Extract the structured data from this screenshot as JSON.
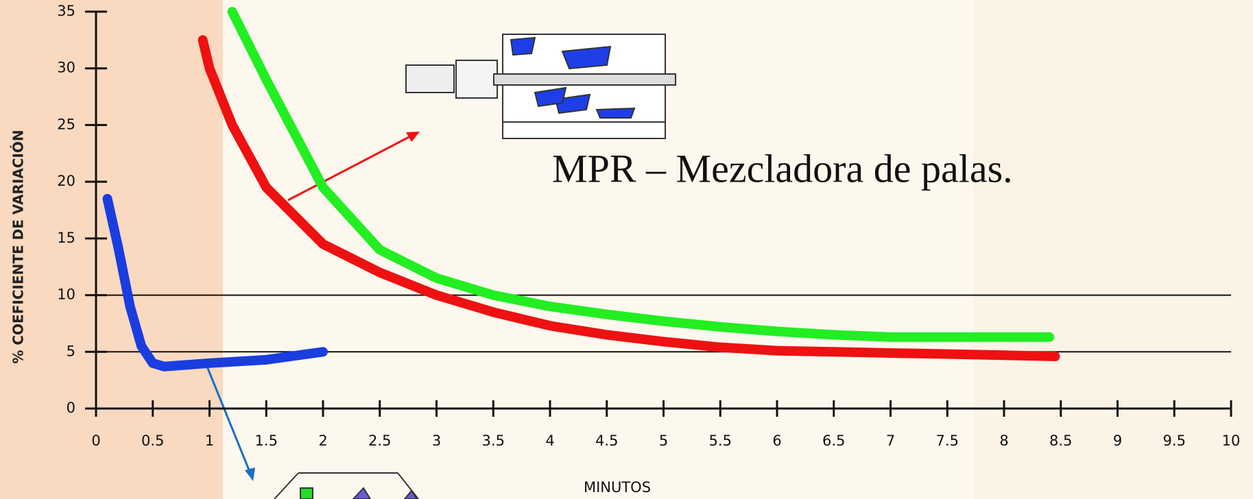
{
  "chart_data": {
    "type": "line",
    "annotation": "MPR – Mezcladora de palas.",
    "xlabel": "MINUTOS",
    "ylabel": "% COEFICIENTE DE VARIACIÓN",
    "xlim": [
      0,
      10
    ],
    "ylim": [
      0,
      35
    ],
    "xticks": [
      0,
      0.5,
      1,
      1.5,
      2,
      2.5,
      3,
      3.5,
      4,
      4.5,
      5,
      5.5,
      6,
      6.5,
      7,
      7.5,
      8,
      8.5,
      9,
      9.5,
      10
    ],
    "yticks": [
      0,
      5,
      10,
      15,
      20,
      25,
      30,
      35
    ],
    "hlines": [
      5,
      10
    ],
    "series": [
      {
        "color": "#1a3de0",
        "x": [
          0.1,
          0.2,
          0.3,
          0.4,
          0.5,
          0.6,
          1.0,
          1.5,
          2.0
        ],
        "values": [
          18.5,
          14,
          9,
          5.5,
          4,
          3.7,
          4,
          4.3,
          5
        ]
      },
      {
        "color": "#ee1111",
        "x": [
          0.94,
          1.0,
          1.2,
          1.5,
          2.0,
          2.5,
          3.0,
          3.5,
          4.0,
          4.5,
          5.0,
          5.5,
          6.0,
          7.0,
          8.0,
          8.45
        ],
        "values": [
          32.5,
          30,
          25,
          19.5,
          14.5,
          12,
          10,
          8.5,
          7.3,
          6.5,
          5.9,
          5.4,
          5.1,
          4.9,
          4.7,
          4.6
        ]
      },
      {
        "color": "#22ee22",
        "x": [
          1.2,
          1.5,
          2.0,
          2.5,
          3.0,
          3.5,
          4.0,
          4.5,
          5.0,
          5.5,
          6.0,
          6.5,
          7.0,
          8.0,
          8.4
        ],
        "values": [
          35,
          29,
          19.5,
          14,
          11.5,
          10,
          9,
          8.3,
          7.7,
          7.2,
          6.8,
          6.5,
          6.3,
          6.3,
          6.3
        ]
      }
    ]
  }
}
